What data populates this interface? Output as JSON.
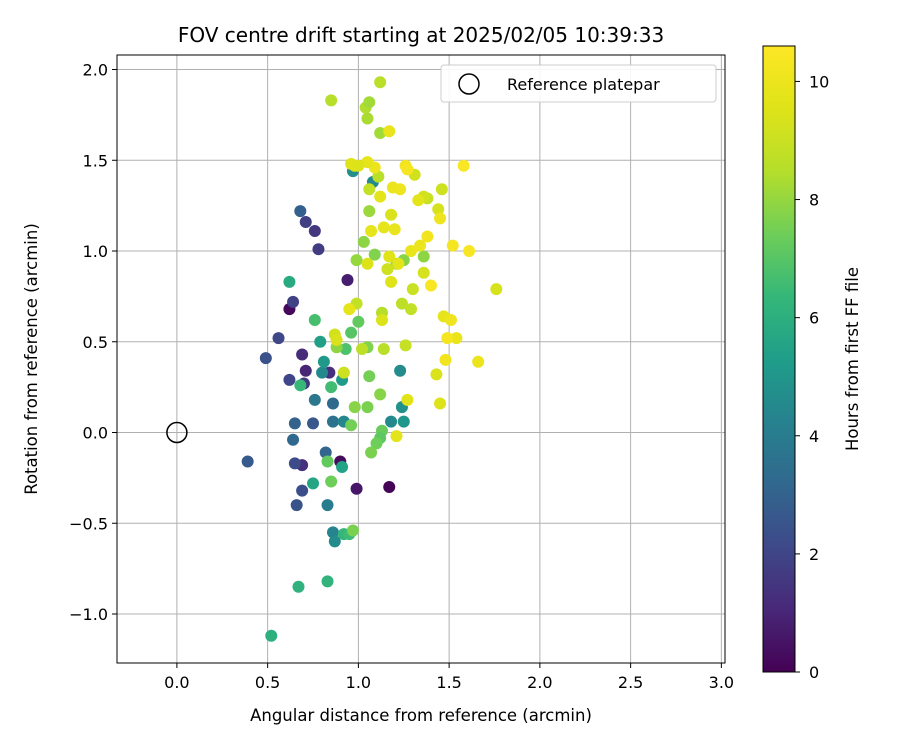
{
  "chart_data": {
    "type": "scatter",
    "title": "FOV centre drift starting at 2025/02/05 10:39:33",
    "xlabel": "Angular distance from reference (arcmin)",
    "ylabel": "Rotation from reference (arcmin)",
    "xlim": [
      -0.33,
      3.02
    ],
    "ylim": [
      -1.27,
      2.08
    ],
    "xticks": [
      0.0,
      0.5,
      1.0,
      1.5,
      2.0,
      2.5,
      3.0
    ],
    "yticks": [
      -1.0,
      -0.5,
      0.0,
      0.5,
      1.0,
      1.5,
      2.0
    ],
    "grid": true,
    "legend": {
      "placement": "upper-right",
      "label": "Reference platepar",
      "marker": "open-circle"
    },
    "reference_point": {
      "x": 0.0,
      "y": 0.0
    },
    "colorbar": {
      "label": "Hours from first FF file",
      "min": 0,
      "max": 10.6,
      "ticks": [
        0,
        2,
        4,
        6,
        8,
        10
      ],
      "colormap": "viridis"
    },
    "columns": [
      "x",
      "y",
      "hours"
    ],
    "points": [
      [
        0.62,
        0.68,
        0.2
      ],
      [
        0.9,
        -0.16,
        0.3
      ],
      [
        0.99,
        -0.31,
        0.6
      ],
      [
        1.17,
        -0.3,
        0.1
      ],
      [
        0.94,
        0.84,
        0.8
      ],
      [
        0.71,
        0.34,
        1.0
      ],
      [
        0.69,
        0.43,
        1.2
      ],
      [
        0.69,
        -0.18,
        1.3
      ],
      [
        0.84,
        0.33,
        1.3
      ],
      [
        0.76,
        1.11,
        1.5
      ],
      [
        0.78,
        1.01,
        1.7
      ],
      [
        0.71,
        1.16,
        1.8
      ],
      [
        0.7,
        0.27,
        1.6
      ],
      [
        0.64,
        0.72,
        1.9
      ],
      [
        0.56,
        0.52,
        2.1
      ],
      [
        0.49,
        0.41,
        2.4
      ],
      [
        0.62,
        0.29,
        2.0
      ],
      [
        0.65,
        -0.17,
        2.2
      ],
      [
        0.69,
        -0.32,
        2.3
      ],
      [
        0.66,
        -0.4,
        2.5
      ],
      [
        0.39,
        -0.16,
        2.7
      ],
      [
        0.68,
        1.22,
        2.9
      ],
      [
        0.75,
        0.05,
        2.6
      ],
      [
        0.65,
        0.05,
        3.0
      ],
      [
        0.64,
        -0.04,
        3.2
      ],
      [
        0.82,
        -0.11,
        3.1
      ],
      [
        0.86,
        0.16,
        3.3
      ],
      [
        0.86,
        0.06,
        3.6
      ],
      [
        0.76,
        0.18,
        3.8
      ],
      [
        0.83,
        -0.4,
        4.0
      ],
      [
        0.86,
        -0.55,
        4.3
      ],
      [
        0.87,
        -0.6,
        4.6
      ],
      [
        0.92,
        0.06,
        4.4
      ],
      [
        0.8,
        0.33,
        4.5
      ],
      [
        0.97,
        1.44,
        4.7
      ],
      [
        1.08,
        1.38,
        4.5
      ],
      [
        1.18,
        0.06,
        4.5
      ],
      [
        1.23,
        0.34,
        4.6
      ],
      [
        1.24,
        0.14,
        4.8
      ],
      [
        1.25,
        0.06,
        5.0
      ],
      [
        0.91,
        0.29,
        5.2
      ],
      [
        0.79,
        0.5,
        5.4
      ],
      [
        0.81,
        0.39,
        5.1
      ],
      [
        0.91,
        -0.19,
        5.5
      ],
      [
        0.75,
        -0.28,
        5.6
      ],
      [
        0.62,
        0.83,
        5.8
      ],
      [
        0.52,
        -1.12,
        6.0
      ],
      [
        0.67,
        -0.85,
        6.1
      ],
      [
        0.83,
        -0.82,
        6.2
      ],
      [
        0.92,
        -0.56,
        6.3
      ],
      [
        0.95,
        -0.56,
        6.5
      ],
      [
        0.85,
        0.25,
        6.6
      ],
      [
        0.68,
        0.26,
        6.4
      ],
      [
        0.76,
        0.62,
        6.7
      ],
      [
        0.93,
        0.46,
        6.8
      ],
      [
        0.96,
        0.55,
        7.0
      ],
      [
        1.0,
        0.61,
        7.2
      ],
      [
        1.13,
        0.01,
        7.3
      ],
      [
        1.12,
        -0.03,
        7.1
      ],
      [
        1.1,
        -0.06,
        7.4
      ],
      [
        1.07,
        -0.11,
        7.6
      ],
      [
        0.96,
        0.04,
        7.5
      ],
      [
        1.05,
        0.47,
        7.7
      ],
      [
        1.12,
        0.21,
        7.8
      ],
      [
        1.06,
        0.31,
        7.5
      ],
      [
        1.03,
        1.05,
        7.9
      ],
      [
        1.09,
        0.98,
        7.7
      ],
      [
        1.21,
        0.93,
        8.0
      ],
      [
        1.25,
        0.95,
        7.8
      ],
      [
        1.36,
        0.97,
        7.9
      ],
      [
        0.97,
        -0.54,
        7.6
      ],
      [
        0.85,
        -0.27,
        7.4
      ],
      [
        0.83,
        -0.16,
        7.2
      ],
      [
        0.98,
        0.14,
        7.8
      ],
      [
        1.05,
        0.14,
        7.6
      ],
      [
        0.88,
        0.47,
        7.9
      ],
      [
        0.99,
        0.95,
        8.0
      ],
      [
        1.06,
        1.22,
        8.1
      ],
      [
        1.12,
        1.65,
        8.2
      ],
      [
        1.05,
        1.73,
        8.3
      ],
      [
        1.04,
        1.79,
        8.4
      ],
      [
        1.06,
        1.82,
        8.2
      ],
      [
        0.85,
        1.83,
        8.5
      ],
      [
        1.12,
        1.93,
        8.6
      ],
      [
        1.13,
        0.66,
        8.5
      ],
      [
        1.14,
        0.46,
        8.6
      ],
      [
        1.02,
        0.46,
        8.7
      ],
      [
        0.99,
        0.71,
        8.8
      ],
      [
        1.24,
        0.71,
        8.7
      ],
      [
        1.26,
        0.48,
        8.9
      ],
      [
        1.29,
        0.68,
        8.8
      ],
      [
        1.3,
        0.79,
        9.0
      ],
      [
        1.16,
        0.9,
        9.1
      ],
      [
        1.38,
        1.29,
        8.9
      ],
      [
        1.31,
        1.42,
        9.2
      ],
      [
        1.46,
        1.34,
        9.1
      ],
      [
        1.44,
        1.23,
        9.3
      ],
      [
        1.36,
        1.3,
        9.2
      ],
      [
        1.06,
        1.34,
        8.8
      ],
      [
        1.11,
        1.41,
        8.6
      ],
      [
        0.98,
        1.47,
        9.4
      ],
      [
        1.76,
        0.79,
        9.3
      ],
      [
        1.43,
        0.32,
        9.4
      ],
      [
        1.45,
        0.16,
        9.5
      ],
      [
        1.27,
        0.18,
        9.6
      ],
      [
        1.33,
        1.28,
        9.7
      ],
      [
        1.47,
        0.64,
        9.8
      ],
      [
        1.54,
        0.52,
        9.9
      ],
      [
        1.66,
        0.39,
        10.0
      ],
      [
        1.51,
        0.62,
        10.1
      ],
      [
        1.48,
        0.4,
        10.2
      ],
      [
        1.49,
        0.52,
        10.3
      ],
      [
        1.61,
        1.0,
        10.4
      ],
      [
        1.52,
        1.03,
        10.3
      ],
      [
        1.58,
        1.47,
        10.5
      ],
      [
        1.45,
        1.18,
        10.1
      ],
      [
        1.38,
        1.08,
        10.2
      ],
      [
        1.34,
        1.03,
        10.0
      ],
      [
        1.29,
        1.0,
        9.9
      ],
      [
        1.22,
        0.93,
        9.7
      ],
      [
        1.14,
        1.13,
        9.8
      ],
      [
        1.2,
        1.12,
        9.9
      ],
      [
        1.18,
        0.83,
        9.6
      ],
      [
        1.13,
        0.62,
        9.5
      ],
      [
        1.17,
        0.97,
        9.6
      ],
      [
        1.05,
        0.93,
        9.5
      ],
      [
        1.07,
        1.11,
        9.8
      ],
      [
        1.12,
        1.3,
        9.7
      ],
      [
        1.19,
        1.35,
        10.0
      ],
      [
        1.23,
        1.34,
        10.1
      ],
      [
        1.26,
        1.47,
        10.2
      ],
      [
        1.27,
        1.45,
        10.3
      ],
      [
        1.17,
        1.66,
        9.9
      ],
      [
        1.09,
        1.46,
        10.0
      ],
      [
        1.05,
        1.49,
        9.8
      ],
      [
        0.96,
        1.48,
        9.6
      ],
      [
        1.0,
        1.47,
        9.5
      ],
      [
        1.21,
        -0.02,
        9.7
      ],
      [
        0.95,
        0.68,
        9.8
      ],
      [
        0.87,
        0.54,
        9.2
      ],
      [
        0.88,
        0.51,
        9.4
      ],
      [
        0.92,
        0.33,
        9.1
      ],
      [
        1.4,
        0.81,
        10.4
      ],
      [
        1.18,
        1.2,
        9.4
      ],
      [
        1.36,
        0.88,
        9.3
      ]
    ]
  }
}
